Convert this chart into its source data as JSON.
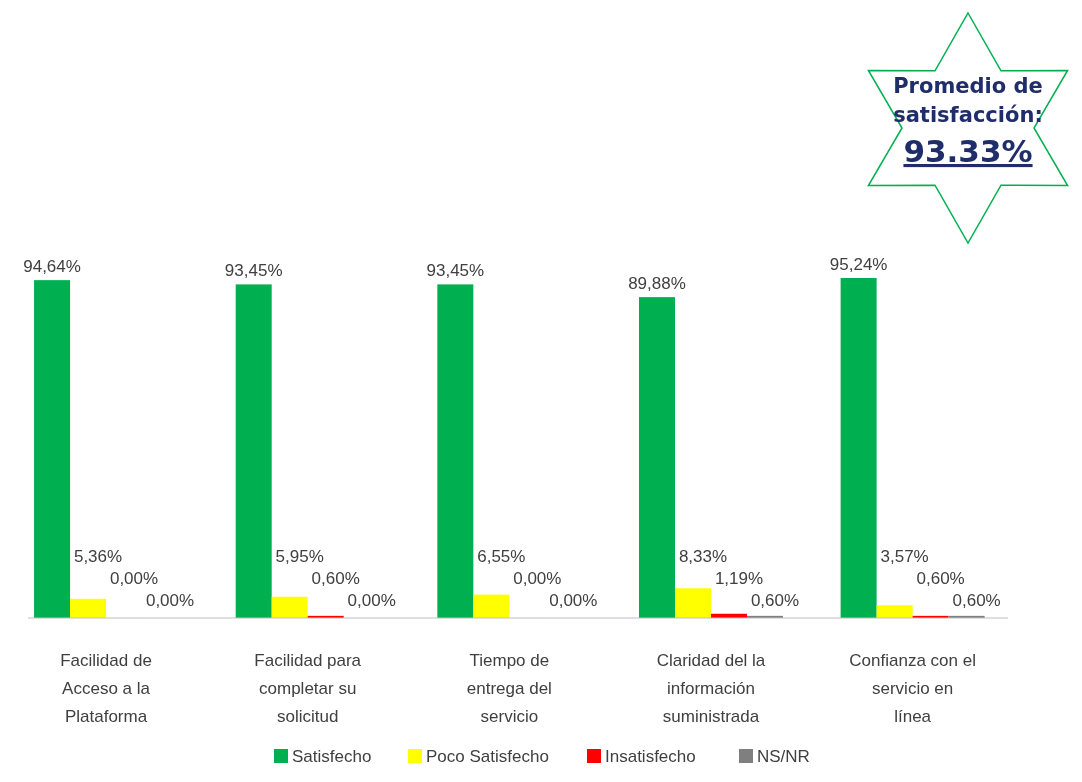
{
  "chart_data": {
    "type": "bar",
    "categories": [
      "Facilidad de Acceso a la Plataforma",
      "Facilidad para completar su solicitud",
      "Tiempo de entrega del servicio",
      "Claridad del la información suministrada",
      "Confianza con el servicio en línea"
    ],
    "series": [
      {
        "name": "Satisfecho",
        "color": "#00b050",
        "values": [
          94.64,
          93.45,
          93.45,
          89.88,
          95.24
        ],
        "value_labels": [
          "94,64%",
          "93,45%",
          "93,45%",
          "89,88%",
          "95,24%"
        ]
      },
      {
        "name": "Poco Satisfecho",
        "color": "#ffff00",
        "values": [
          5.36,
          5.95,
          6.55,
          8.33,
          3.57
        ],
        "value_labels": [
          "5,36%",
          "5,95%",
          "6,55%",
          "8,33%",
          "3,57%"
        ]
      },
      {
        "name": "Insatisfecho",
        "color": "#ff0000",
        "values": [
          0,
          0.6,
          0,
          1.19,
          0.6
        ],
        "value_labels": [
          "0,00%",
          "0,60%",
          "0,00%",
          "1,19%",
          "0,60%"
        ]
      },
      {
        "name": "NS/NR",
        "color": "#7f7f7f",
        "values": [
          0,
          0,
          0,
          0.6,
          0.6
        ],
        "value_labels": [
          "0,00%",
          "0,00%",
          "0,00%",
          "0,60%",
          "0,60%"
        ]
      }
    ],
    "tick_labels": "x",
    "legend": "bottom",
    "annotations": [
      "Promedio de satisfacción: 93.33%"
    ]
  }
}
